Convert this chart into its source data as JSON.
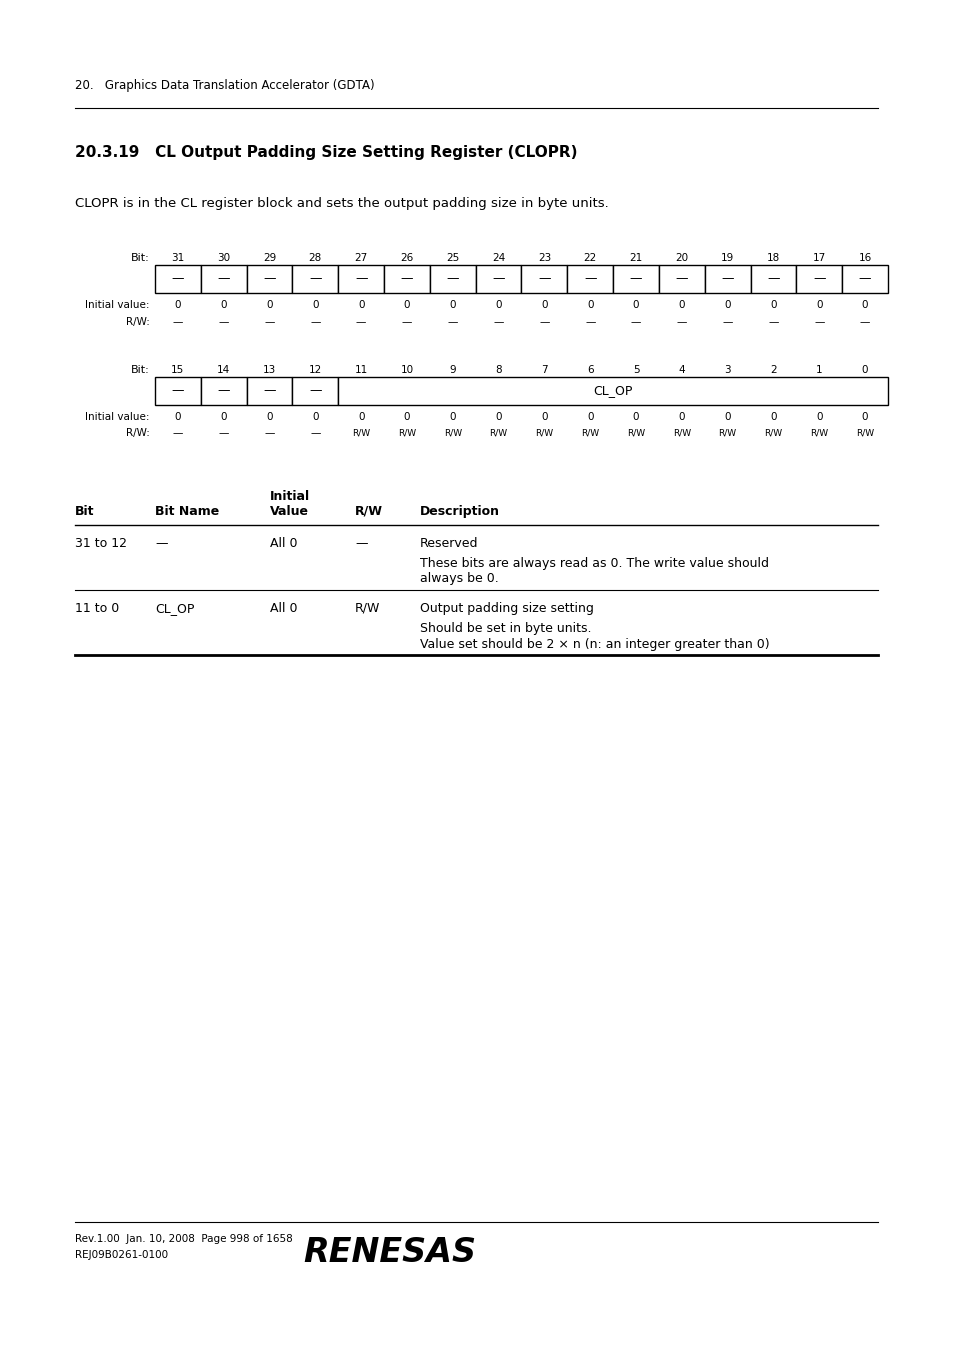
{
  "page_header": "20.   Graphics Data Translation Accelerator (GDTA)",
  "section_title": "20.3.19   CL Output Padding Size Setting Register (CLOPR)",
  "intro_text": "CLOPR is in the CL register block and sets the output padding size in byte units.",
  "reg_upper_bits": [
    31,
    30,
    29,
    28,
    27,
    26,
    25,
    24,
    23,
    22,
    21,
    20,
    19,
    18,
    17,
    16
  ],
  "reg_upper_values": [
    "—",
    "—",
    "—",
    "—",
    "—",
    "—",
    "—",
    "—",
    "—",
    "—",
    "—",
    "—",
    "—",
    "—",
    "—",
    "—"
  ],
  "reg_upper_init": [
    "0",
    "0",
    "0",
    "0",
    "0",
    "0",
    "0",
    "0",
    "0",
    "0",
    "0",
    "0",
    "0",
    "0",
    "0",
    "0"
  ],
  "reg_upper_rw": [
    "—",
    "—",
    "—",
    "—",
    "—",
    "—",
    "—",
    "—",
    "—",
    "—",
    "—",
    "—",
    "—",
    "—",
    "—",
    "—"
  ],
  "reg_lower_bits": [
    15,
    14,
    13,
    12,
    11,
    10,
    9,
    8,
    7,
    6,
    5,
    4,
    3,
    2,
    1,
    0
  ],
  "reg_lower_reserved": 4,
  "reg_lower_label": "CL_OP",
  "reg_lower_values_reserved": [
    "—",
    "—",
    "—",
    "—"
  ],
  "reg_lower_init": [
    "0",
    "0",
    "0",
    "0",
    "0",
    "0",
    "0",
    "0",
    "0",
    "0",
    "0",
    "0",
    "0",
    "0",
    "0",
    "0"
  ],
  "reg_lower_rw_reserved": [
    "—",
    "—",
    "—",
    "—"
  ],
  "reg_lower_rw_op": [
    "R/W",
    "R/W",
    "R/W",
    "R/W",
    "R/W",
    "R/W",
    "R/W",
    "R/W",
    "R/W",
    "R/W",
    "R/W",
    "R/W"
  ],
  "table_rows": [
    {
      "bit": "31 to 12",
      "name": "—",
      "init": "All 0",
      "rw": "—",
      "desc_line1": "Reserved",
      "desc_line2": "These bits are always read as 0. The write value should",
      "desc_line3": "always be 0.",
      "desc_line4": ""
    },
    {
      "bit": "11 to 0",
      "name": "CL_OP",
      "init": "All 0",
      "rw": "R/W",
      "desc_line1": "Output padding size setting",
      "desc_line2": "Should be set in byte units.",
      "desc_line3": "Value set should be 2 × n (n: an integer greater than 0)",
      "desc_line4": ""
    }
  ],
  "footer_left1": "Rev.1.00  Jan. 10, 2008  Page 998 of 1658",
  "footer_left2": "REJ09B0261-0100",
  "footer_logo": "RENESAS",
  "bg_color": "#ffffff",
  "text_color": "#000000"
}
